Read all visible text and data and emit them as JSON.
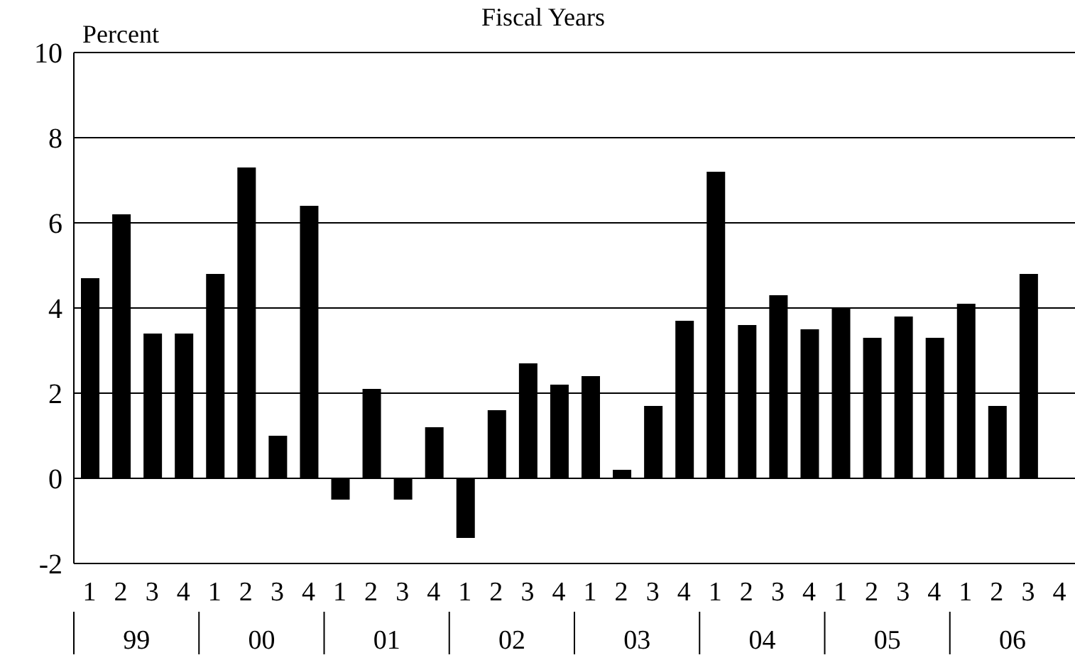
{
  "chart_data": {
    "type": "bar",
    "title": "Fiscal Years",
    "ylabel": "Percent",
    "categories": [
      "1",
      "2",
      "3",
      "4",
      "1",
      "2",
      "3",
      "4",
      "1",
      "2",
      "3",
      "4",
      "1",
      "2",
      "3",
      "4",
      "1",
      "2",
      "3",
      "4",
      "1",
      "2",
      "3",
      "4",
      "1",
      "2",
      "3",
      "4",
      "1",
      "2",
      "3",
      "4"
    ],
    "annotations": [
      "99",
      "00",
      "01",
      "02",
      "03",
      "04",
      "05",
      "06"
    ],
    "values": [
      4.7,
      6.2,
      3.4,
      3.4,
      4.8,
      7.3,
      1.0,
      6.4,
      -0.5,
      2.1,
      -0.5,
      1.2,
      -1.4,
      1.6,
      2.7,
      2.2,
      2.4,
      0.2,
      1.7,
      3.7,
      7.2,
      3.6,
      4.3,
      3.5,
      4.0,
      3.3,
      3.8,
      3.3,
      4.1,
      1.7,
      4.8,
      null
    ],
    "color": "#000000",
    "ylim": [
      -2,
      10
    ],
    "yticks": [
      -2,
      0,
      2,
      4,
      6,
      8,
      10
    ],
    "grid": "y"
  }
}
